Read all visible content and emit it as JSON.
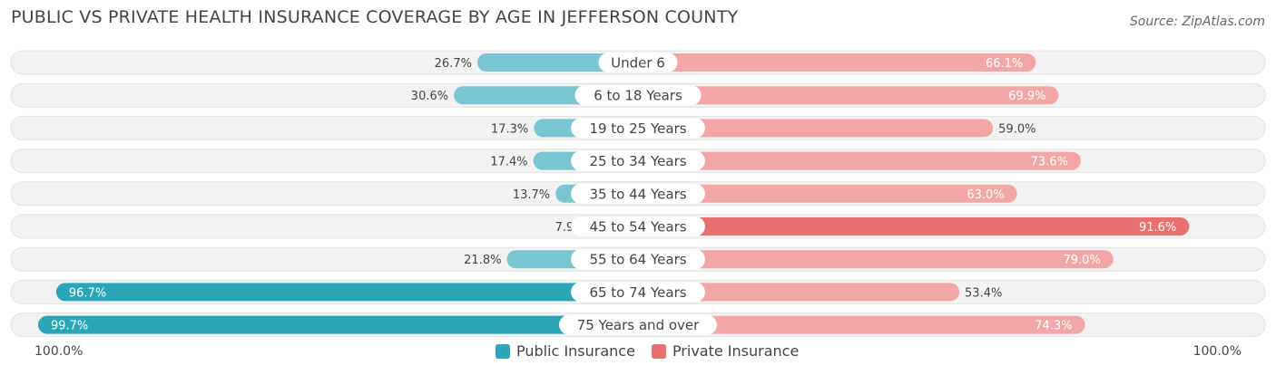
{
  "header": {
    "title": "PUBLIC VS PRIVATE HEALTH INSURANCE COVERAGE BY AGE IN JEFFERSON COUNTY",
    "source": "Source: ZipAtlas.com"
  },
  "axis": {
    "left_label": "100.0%",
    "right_label": "100.0%"
  },
  "legend": {
    "public_label": "Public Insurance",
    "private_label": "Private Insurance"
  },
  "colors": {
    "public_light": "#79c6d2",
    "public_dark": "#2ba5b8",
    "private_light": "#f1a7a5",
    "private_dark": "#e8706e",
    "track": "#f2f2f2",
    "track_border": "#e2e2e2"
  },
  "chart_data": {
    "type": "bar",
    "orientation": "horizontal-diverging",
    "title": "PUBLIC VS PRIVATE HEALTH INSURANCE COVERAGE BY AGE IN JEFFERSON COUNTY",
    "xlim": [
      -100,
      100
    ],
    "categories": [
      "Under 6",
      "6 to 18 Years",
      "19 to 25 Years",
      "25 to 34 Years",
      "35 to 44 Years",
      "45 to 54 Years",
      "55 to 64 Years",
      "65 to 74 Years",
      "75 Years and over"
    ],
    "series": [
      {
        "name": "Public Insurance",
        "side": "left",
        "values": [
          26.7,
          30.6,
          17.3,
          17.4,
          13.7,
          7.9,
          21.8,
          96.7,
          99.7
        ],
        "labels": [
          "26.7%",
          "30.6%",
          "17.3%",
          "17.4%",
          "13.7%",
          "7.9%",
          "21.8%",
          "96.7%",
          "99.7%"
        ]
      },
      {
        "name": "Private Insurance",
        "side": "right",
        "values": [
          66.1,
          69.9,
          59.0,
          73.6,
          63.0,
          91.6,
          79.0,
          53.4,
          74.3
        ],
        "labels": [
          "66.1%",
          "69.9%",
          "59.0%",
          "73.6%",
          "63.0%",
          "91.6%",
          "79.0%",
          "53.4%",
          "74.3%"
        ]
      }
    ],
    "legend_position": "bottom-center"
  }
}
